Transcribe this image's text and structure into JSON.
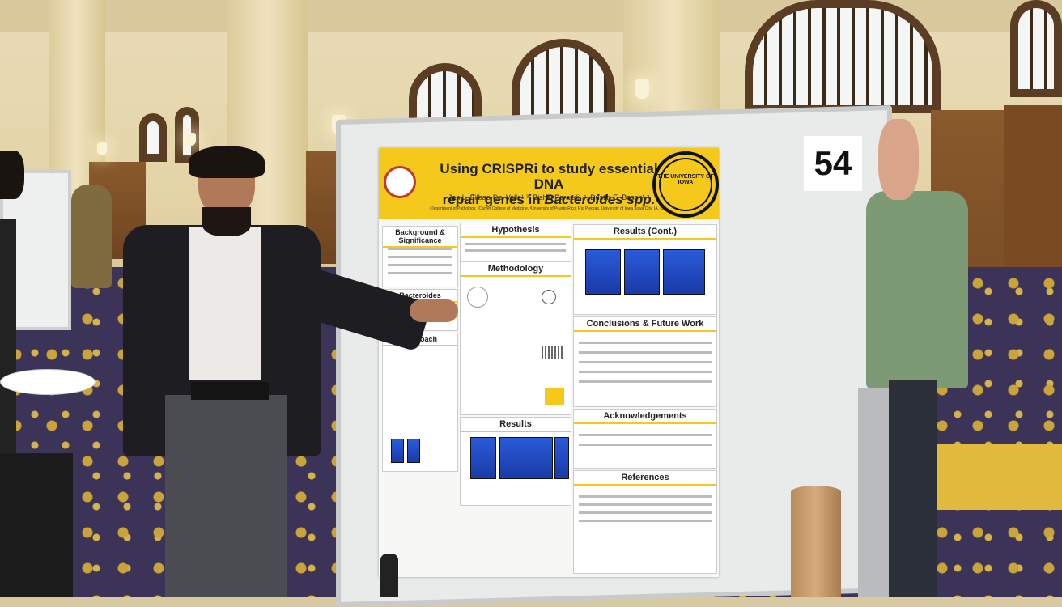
{
  "scene": {
    "description_tags": [
      "poster-session",
      "indoor-hall"
    ],
    "colors": {
      "poster_header": "#f4c91b",
      "carpet": "#3b3358",
      "wall": "#e3d3a6"
    }
  },
  "poster": {
    "title_line1": "Using CRISPRi to study essential DNA",
    "title_line2_plain": "repair genes in ",
    "title_line2_italic": "Bacteroides spp.",
    "authors": "Jan L. Bilbao-Del Valle¹˒³, Bishal Parajuli¹˒², Dustin E. Bosch¹˒²",
    "affiliations": "¹Department of Pathology, ²Carver College of Medicine, ³University of Puerto Rico, Rio Piedras, University of Iowa, Iowa City, IA, USA",
    "seal_text": "THE UNIVERSITY OF IOWA",
    "sections": {
      "background": "Background & Significance",
      "hypothesis": "Hypothesis",
      "methodology": "Methodology",
      "bacteroides": "Bacteroides",
      "approach": "Approach",
      "results": "Results",
      "results_cont": "Results (Cont.)",
      "conclusions": "Conclusions & Future Work",
      "acknowledgements": "Acknowledgements",
      "references": "References"
    }
  },
  "board_number": "54"
}
